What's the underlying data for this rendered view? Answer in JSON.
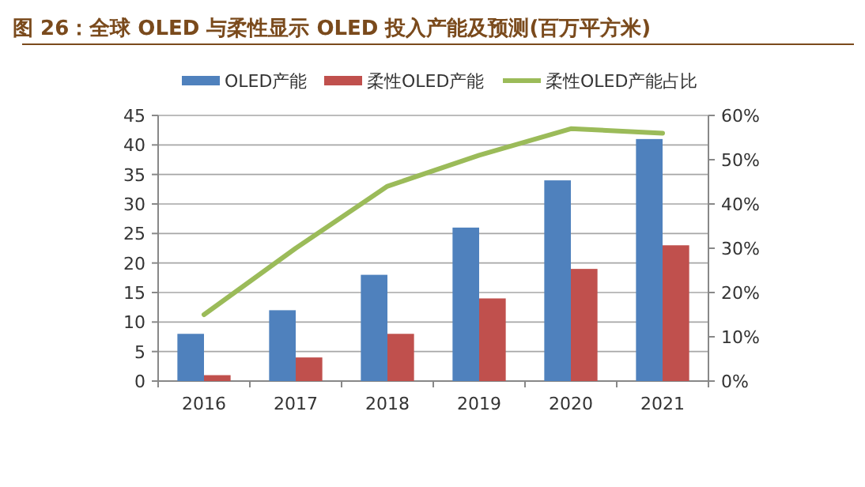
{
  "chart_data": {
    "type": "bar",
    "title": "图 26：全球 OLED 与柔性显示 OLED 投入产能及预测(百万平方米)",
    "categories": [
      "2016",
      "2017",
      "2018",
      "2019",
      "2020",
      "2021"
    ],
    "series": [
      {
        "name": "OLED产能",
        "color": "#4f81bd",
        "values": [
          8,
          12,
          18,
          26,
          34,
          41
        ]
      },
      {
        "name": "柔性OLED产能",
        "color": "#c0504d",
        "values": [
          1,
          4,
          8,
          14,
          19,
          23
        ]
      },
      {
        "name": "柔性OLED产能占比",
        "type": "line",
        "axis": "y2",
        "color": "#9bbb59",
        "values": [
          15,
          30,
          44,
          51,
          57,
          56
        ]
      }
    ],
    "ylim": [
      0,
      45
    ],
    "yticks": [
      0,
      5,
      10,
      15,
      20,
      25,
      30,
      35,
      40,
      45
    ],
    "y2lim": [
      0,
      60
    ],
    "y2ticks": [
      {
        "value": 0,
        "label": "0%"
      },
      {
        "value": 10,
        "label": "10%"
      },
      {
        "value": 20,
        "label": "20%"
      },
      {
        "value": 30,
        "label": "30%"
      },
      {
        "value": 40,
        "label": "40%"
      },
      {
        "value": 50,
        "label": "50%"
      },
      {
        "value": 60,
        "label": "60%"
      }
    ],
    "grid": "y",
    "legend": "top"
  }
}
